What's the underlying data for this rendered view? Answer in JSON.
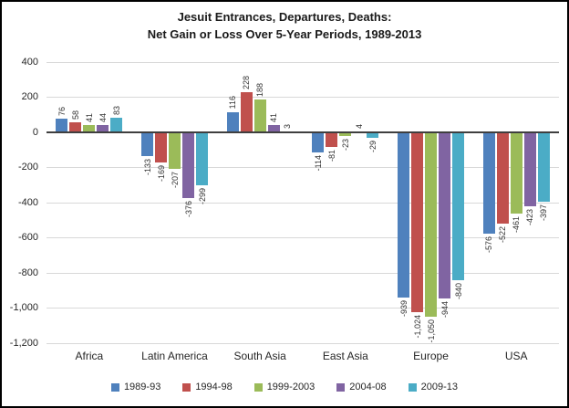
{
  "title": {
    "line1": "Jesuit Entrances, Departures, Deaths:",
    "line2": "Net Gain or Loss Over 5-Year Periods, 1989-2013"
  },
  "chart_data": {
    "type": "bar",
    "title": "Jesuit Entrances, Departures, Deaths: Net Gain or Loss Over 5-Year Periods, 1989-2013",
    "categories": [
      "Africa",
      "Latin America",
      "South Asia",
      "East Asia",
      "Europe",
      "USA"
    ],
    "series": [
      {
        "name": "1989-93",
        "color": "#4F81BD",
        "values": [
          76,
          -133,
          116,
          -114,
          -939,
          -576
        ]
      },
      {
        "name": "1994-98",
        "color": "#C0504D",
        "values": [
          58,
          -169,
          228,
          -81,
          -1024,
          -522
        ]
      },
      {
        "name": "1999-2003",
        "color": "#9BBB59",
        "values": [
          41,
          -207,
          188,
          -23,
          -1050,
          -461
        ]
      },
      {
        "name": "2004-08",
        "color": "#8064A2",
        "values": [
          44,
          -376,
          41,
          4,
          -944,
          -423
        ]
      },
      {
        "name": "2009-13",
        "color": "#4BACC6",
        "values": [
          83,
          -299,
          3,
          -29,
          -840,
          -397
        ]
      }
    ],
    "ylim": [
      -1200,
      400
    ],
    "ytick_step": 200,
    "ytick_labels": [
      "400",
      "200",
      "0",
      "-200",
      "-400",
      "-600",
      "-800",
      "-1,000",
      "-1,200"
    ],
    "grid": true,
    "gridline_color": "#D9D9D9",
    "axis_line_color": "#3F3F3F",
    "data_labels": true,
    "data_label_color": "#333333",
    "legend_position": "bottom"
  }
}
